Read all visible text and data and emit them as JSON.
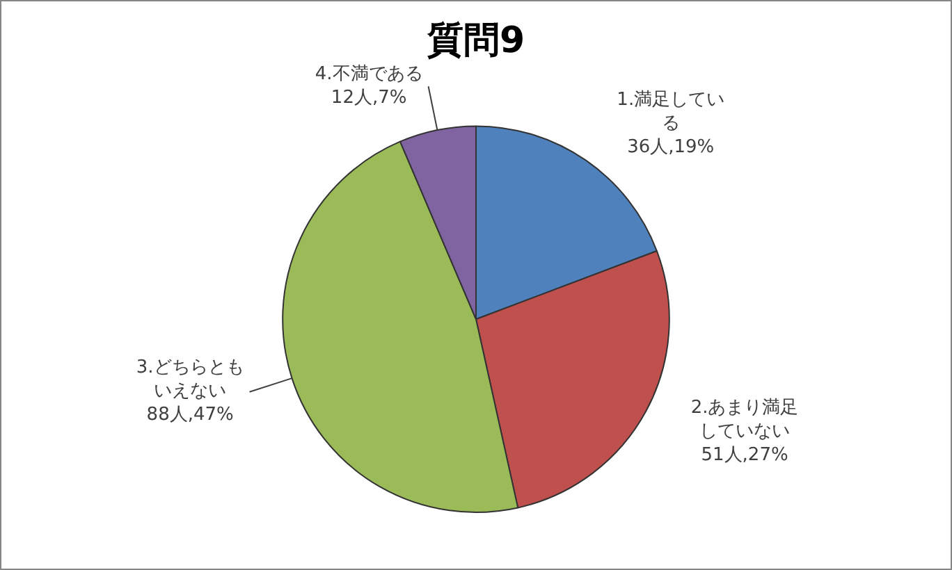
{
  "chart_data": {
    "type": "pie",
    "title": "質問9",
    "categories": [
      "1.満足している",
      "2.あまり満足していない",
      "3.どちらともいえない",
      "4.不満である"
    ],
    "values": [
      36,
      51,
      88,
      12
    ],
    "colors": [
      "#4f81bd",
      "#c0504d",
      "#9bbb59",
      "#8064a2"
    ],
    "value_labels": [
      "36人,19%",
      "51人,27%",
      "88人,47%",
      "12人,7%"
    ]
  }
}
